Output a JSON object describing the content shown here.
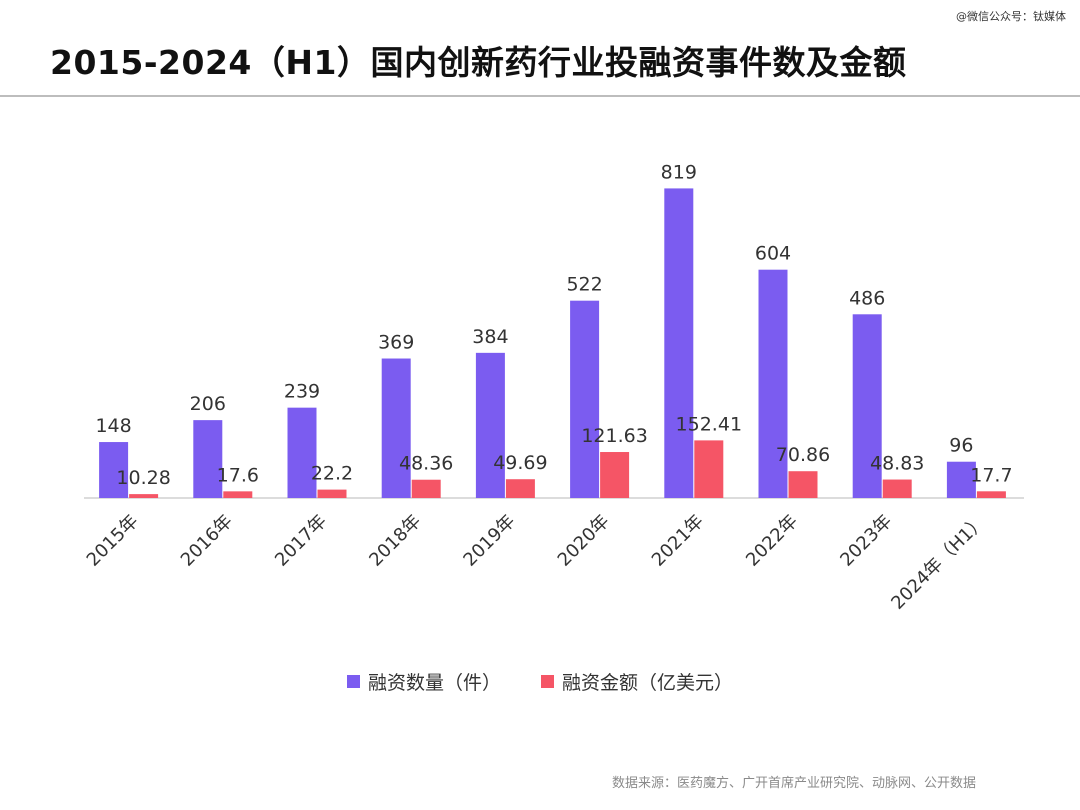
{
  "header": {
    "title": "2015-2024（H1）国内创新药行业投融资事件数及金额",
    "watermark": "@微信公众号：钛媒体"
  },
  "footer": {
    "source": "数据来源：医药魔方、广开首席产业研究院、动脉网、公开数据"
  },
  "colors": {
    "count": "#7B5CF0",
    "amount": "#F55566",
    "axis": "#d0d0d0"
  },
  "chart_data": {
    "type": "bar",
    "categories": [
      "2015年",
      "2016年",
      "2017年",
      "2018年",
      "2019年",
      "2020年",
      "2021年",
      "2022年",
      "2023年",
      "2024年（H1）"
    ],
    "series": [
      {
        "name": "融资数量（件）",
        "values": [
          148,
          206,
          239,
          369,
          384,
          522,
          819,
          604,
          486,
          96
        ],
        "labels": [
          "148",
          "206",
          "239",
          "369",
          "384",
          "522",
          "819",
          "604",
          "486",
          "96"
        ]
      },
      {
        "name": "融资金额（亿美元）",
        "values": [
          10.28,
          17.6,
          22.2,
          48.36,
          49.69,
          121.63,
          152.41,
          70.86,
          48.83,
          17.7
        ],
        "labels": [
          "10.28",
          "17.6",
          "22.2",
          "48.36",
          "49.69",
          "121.63",
          "152.41",
          "70.86",
          "48.83",
          "17.7"
        ]
      }
    ],
    "legend_position": "bottom",
    "grid": false
  }
}
